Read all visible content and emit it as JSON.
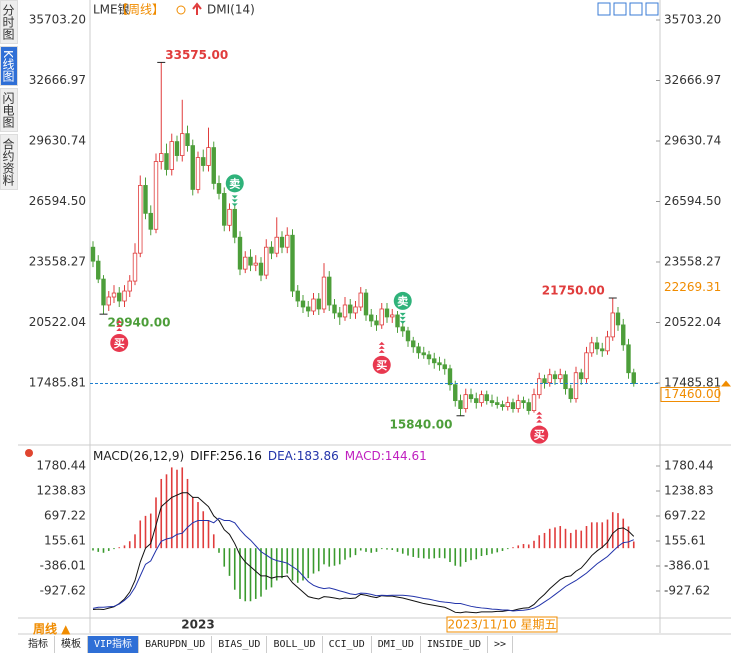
{
  "header": {
    "symbol": "LME镍",
    "period": "【周线】",
    "indicator": "DMI(14)"
  },
  "sidebar": {
    "items": [
      "分时图",
      "K线图",
      "闪电图",
      "合约资料"
    ],
    "active": 1
  },
  "bottom_tabs": {
    "items": [
      "指标",
      "模板",
      "VIP指标",
      "BARUPDN_UD",
      "BIAS_UD",
      "BOLL_UD",
      "CCI_UD",
      "DMI_UD",
      "INSIDE_UD",
      ">>"
    ],
    "active": 2
  },
  "period_button": "周线 ▲",
  "cursor_date": "2023/11/10 星期五",
  "chart_data": [
    {
      "type": "candlestick",
      "categories": [
        null,
        null,
        null,
        null,
        null,
        null,
        null,
        null,
        null,
        null,
        null,
        null,
        null,
        null,
        null,
        null,
        null,
        null,
        null,
        null,
        "2023",
        null,
        null,
        null,
        null,
        null,
        null,
        null,
        null,
        null,
        null,
        null,
        null,
        null,
        null,
        null,
        null,
        null,
        null,
        null,
        null,
        null,
        null,
        null,
        null,
        null,
        null,
        null,
        null,
        null,
        null,
        null,
        null,
        null,
        null,
        null,
        null,
        null,
        null,
        null,
        null,
        null,
        null,
        null,
        null,
        null,
        null,
        null,
        null,
        null,
        null,
        null,
        null,
        null,
        null,
        null,
        null,
        null,
        null,
        null,
        null,
        null,
        null,
        null,
        null,
        null,
        null,
        null,
        null,
        null,
        null,
        null,
        null,
        null,
        null,
        null,
        null,
        null,
        null,
        null,
        null,
        null,
        null,
        null
      ],
      "ohlc": [
        [
          24300,
          24600,
          23300,
          23600
        ],
        [
          23600,
          23900,
          22500,
          22700
        ],
        [
          22700,
          22900,
          20940,
          21400
        ],
        [
          21400,
          22100,
          21100,
          21800
        ],
        [
          21800,
          22400,
          21500,
          22000
        ],
        [
          22000,
          22300,
          21300,
          21600
        ],
        [
          21600,
          22400,
          21300,
          22100
        ],
        [
          22100,
          22900,
          21800,
          22600
        ],
        [
          22600,
          24500,
          22400,
          24000
        ],
        [
          24000,
          27900,
          23800,
          27400
        ],
        [
          27400,
          27800,
          25700,
          26000
        ],
        [
          26000,
          26400,
          24900,
          25200
        ],
        [
          25200,
          29000,
          25000,
          28600
        ],
        [
          28600,
          33575,
          28200,
          29000
        ],
        [
          29000,
          29500,
          27900,
          28200
        ],
        [
          28200,
          30000,
          27900,
          29600
        ],
        [
          29600,
          29900,
          28600,
          28900
        ],
        [
          28900,
          31700,
          28600,
          30000
        ],
        [
          30000,
          30400,
          29100,
          29400
        ],
        [
          29400,
          29700,
          26900,
          27200
        ],
        [
          27200,
          29100,
          27000,
          28800
        ],
        [
          28800,
          29200,
          28100,
          28400
        ],
        [
          28400,
          30300,
          28100,
          29300
        ],
        [
          29300,
          29600,
          27200,
          27500
        ],
        [
          27500,
          27900,
          26700,
          27000
        ],
        [
          27000,
          27300,
          25100,
          25400
        ],
        [
          25400,
          26500,
          25100,
          26200
        ],
        [
          26200,
          26400,
          24500,
          24800
        ],
        [
          24800,
          25100,
          22900,
          23200
        ],
        [
          23200,
          24100,
          23000,
          23800
        ],
        [
          23800,
          24200,
          23100,
          23400
        ],
        [
          23400,
          23900,
          23100,
          23500
        ],
        [
          23500,
          23800,
          22600,
          22900
        ],
        [
          22900,
          24700,
          22700,
          24300
        ],
        [
          24300,
          24600,
          23700,
          24000
        ],
        [
          24000,
          25800,
          23800,
          24800
        ],
        [
          24800,
          25100,
          24000,
          24300
        ],
        [
          24300,
          25300,
          24000,
          24900
        ],
        [
          24900,
          25200,
          21800,
          22100
        ],
        [
          22100,
          22400,
          21300,
          21600
        ],
        [
          21600,
          21900,
          21000,
          21300
        ],
        [
          21300,
          21600,
          20800,
          21100
        ],
        [
          21100,
          22000,
          20900,
          21700
        ],
        [
          21700,
          22000,
          20900,
          21200
        ],
        [
          21200,
          23500,
          21000,
          22800
        ],
        [
          22800,
          23100,
          21100,
          21400
        ],
        [
          21400,
          21700,
          20700,
          21000
        ],
        [
          21000,
          21300,
          20400,
          20800
        ],
        [
          20800,
          21800,
          20600,
          21400
        ],
        [
          21400,
          21700,
          20700,
          21000
        ],
        [
          21000,
          21600,
          20700,
          21300
        ],
        [
          21300,
          22300,
          21100,
          22000
        ],
        [
          22000,
          22200,
          20600,
          20900
        ],
        [
          20900,
          21200,
          20300,
          20600
        ],
        [
          20600,
          20900,
          20100,
          20400
        ],
        [
          20400,
          21500,
          20200,
          21200
        ],
        [
          21200,
          21500,
          20500,
          20800
        ],
        [
          20800,
          21200,
          20500,
          20900
        ],
        [
          20900,
          21100,
          20000,
          20300
        ],
        [
          20300,
          20500,
          19800,
          20100
        ],
        [
          20100,
          20300,
          19300,
          19600
        ],
        [
          19600,
          19800,
          19000,
          19300
        ],
        [
          19300,
          19500,
          18700,
          19000
        ],
        [
          19000,
          19300,
          18700,
          18900
        ],
        [
          18900,
          19100,
          18400,
          18700
        ],
        [
          18700,
          19000,
          18200,
          18500
        ],
        [
          18500,
          18800,
          18100,
          18400
        ],
        [
          18400,
          18700,
          17900,
          18200
        ],
        [
          18200,
          18400,
          17100,
          17400
        ],
        [
          17400,
          17600,
          16300,
          16600
        ],
        [
          16600,
          16900,
          15840,
          16200
        ],
        [
          16200,
          17200,
          16000,
          16900
        ],
        [
          16900,
          17200,
          16500,
          16700
        ],
        [
          16700,
          17000,
          16200,
          16500
        ],
        [
          16500,
          17100,
          16300,
          16900
        ],
        [
          16900,
          17100,
          16400,
          16600
        ],
        [
          16600,
          16900,
          16300,
          16500
        ],
        [
          16500,
          16800,
          16200,
          16400
        ],
        [
          16400,
          16600,
          16100,
          16300
        ],
        [
          16300,
          16800,
          16100,
          16500
        ],
        [
          16500,
          16700,
          16000,
          16200
        ],
        [
          16200,
          16900,
          16000,
          16600
        ],
        [
          16600,
          16800,
          16200,
          16500
        ],
        [
          16500,
          16700,
          15900,
          16100
        ],
        [
          16100,
          17200,
          16000,
          16900
        ],
        [
          16900,
          18000,
          16700,
          17700
        ],
        [
          17700,
          17900,
          17200,
          17500
        ],
        [
          17500,
          18200,
          17300,
          17900
        ],
        [
          17900,
          18100,
          17400,
          17700
        ],
        [
          17700,
          18200,
          17500,
          17900
        ],
        [
          17900,
          18100,
          16900,
          17200
        ],
        [
          17200,
          17400,
          16500,
          16700
        ],
        [
          16700,
          18300,
          16500,
          18000
        ],
        [
          18000,
          18200,
          17400,
          17700
        ],
        [
          17700,
          19300,
          17500,
          19000
        ],
        [
          19000,
          19800,
          18800,
          19500
        ],
        [
          19500,
          19800,
          18900,
          19200
        ],
        [
          19200,
          19500,
          18800,
          19100
        ],
        [
          19100,
          20100,
          18900,
          19800
        ],
        [
          19800,
          21750,
          19600,
          21000
        ],
        [
          21000,
          21300,
          20100,
          20400
        ],
        [
          20400,
          20700,
          19100,
          19400
        ],
        [
          19400,
          19700,
          17700,
          18000
        ],
        [
          18000,
          18200,
          17300,
          17460
        ]
      ],
      "up_color": "#e03c3c",
      "down_color": "#4d9e3a",
      "ylim": [
        14624,
        35703.2
      ],
      "yticks": [
        {
          "value": 35703.2,
          "label": "35703.20"
        },
        32666.97,
        29630.74,
        {
          "value": 26594.5,
          "label": "26594.50"
        },
        23558.27,
        20522.04,
        17485.81
      ],
      "grid": false,
      "extremes": [
        {
          "value": 33575,
          "label": "33575.00"
        },
        {
          "value": 20940,
          "label": "20940.00"
        },
        {
          "value": 15840,
          "label": "15840.00"
        },
        {
          "value": 21750,
          "label": "21750.00"
        }
      ],
      "signals": [
        {
          "label": "买",
          "index": 5
        },
        {
          "label": "卖",
          "index": 27
        },
        {
          "label": "买",
          "index": 55
        },
        {
          "label": "卖",
          "index": 59
        },
        {
          "label": "买",
          "index": 85
        }
      ],
      "last_price": {
        "value": 17460,
        "label": "17460.00",
        "color": "#1e7fd0"
      },
      "cursor_price": {
        "value": 22269.31,
        "label": "22269.31"
      }
    },
    {
      "type": "macd",
      "title": "MACD(26,12,9)",
      "ylim": [
        -1448,
        2019
      ],
      "yticks": [
        1780.44,
        1238.83,
        697.22,
        155.61,
        -386.01,
        -927.62
      ],
      "series": [
        {
          "name": "DIFF:",
          "color": "#111111",
          "values": [
            -1330,
            -1320,
            -1330,
            -1300,
            -1270,
            -1200,
            -1100,
            -950,
            -700,
            -300,
            0,
            100,
            500,
            900,
            1000,
            1100,
            1150,
            1200,
            1200,
            1100,
            1100,
            1000,
            900,
            700,
            600,
            400,
            300,
            100,
            -150,
            -300,
            -400,
            -500,
            -600,
            -600,
            -650,
            -620,
            -620,
            -600,
            -750,
            -850,
            -950,
            -1050,
            -1080,
            -1100,
            -1050,
            -1060,
            -1080,
            -1100,
            -1080,
            -1090,
            -1080,
            -1000,
            -1020,
            -1050,
            -1070,
            -1030,
            -1040,
            -1040,
            -1060,
            -1080,
            -1110,
            -1140,
            -1170,
            -1200,
            -1220,
            -1240,
            -1260,
            -1280,
            -1330,
            -1390,
            -1400,
            -1380,
            -1390,
            -1400,
            -1380,
            -1380,
            -1380,
            -1370,
            -1370,
            -1350,
            -1350,
            -1320,
            -1300,
            -1290,
            -1220,
            -1100,
            -1000,
            -880,
            -780,
            -680,
            -620,
            -600,
            -500,
            -430,
            -300,
            -160,
            -60,
            20,
            130,
            320,
            420,
            440,
            370,
            256.16
          ]
        },
        {
          "name": "DEA:",
          "color": "#2233aa",
          "values": [
            -1305,
            -1280,
            -1280,
            -1270,
            -1260,
            -1210,
            -1130,
            -1025,
            -850,
            -600,
            -350,
            -275,
            -50,
            150,
            200,
            225,
            300,
            325,
            450,
            550,
            600,
            600,
            600,
            550,
            650,
            600,
            600,
            550,
            400,
            275,
            175,
            50,
            -75,
            -150,
            -225,
            -270,
            -295,
            -325,
            -400,
            -475,
            -600,
            -725,
            -805,
            -850,
            -875,
            -860,
            -890,
            -925,
            -955,
            -990,
            -1005,
            -975,
            -980,
            -1000,
            -1030,
            -1020,
            -1025,
            -1020,
            -1020,
            -1020,
            -1030,
            -1045,
            -1065,
            -1090,
            -1105,
            -1130,
            -1155,
            -1170,
            -1180,
            -1200,
            -1200,
            -1230,
            -1260,
            -1280,
            -1295,
            -1305,
            -1320,
            -1325,
            -1340,
            -1340,
            -1360,
            -1350,
            -1345,
            -1330,
            -1300,
            -1240,
            -1165,
            -1090,
            -1005,
            -920,
            -830,
            -765,
            -700,
            -620,
            -540,
            -440,
            -340,
            -260,
            -180,
            -70,
            40,
            120,
            135,
            183.86
          ]
        },
        {
          "name": "MACD:",
          "color": "#c020c0",
          "up_color": "#e03c3c",
          "down_color": "#3a9a2e",
          "values": [
            -50,
            -80,
            -100,
            -60,
            -20,
            20,
            60,
            150,
            300,
            600,
            700,
            750,
            1100,
            1500,
            1600,
            1750,
            1700,
            1750,
            1500,
            1100,
            1000,
            800,
            600,
            300,
            -100,
            -400,
            -600,
            -900,
            -1100,
            -1150,
            -1150,
            -1100,
            -1050,
            -900,
            -850,
            -700,
            -650,
            -550,
            -700,
            -750,
            -700,
            -650,
            -550,
            -500,
            -350,
            -400,
            -380,
            -350,
            -250,
            -200,
            -150,
            -50,
            -80,
            -100,
            -80,
            -20,
            -30,
            -40,
            -80,
            -120,
            -160,
            -190,
            -210,
            -220,
            -230,
            -220,
            -210,
            -220,
            -300,
            -380,
            -400,
            -300,
            -260,
            -240,
            -170,
            -150,
            -120,
            -90,
            -60,
            -20,
            20,
            60,
            90,
            80,
            160,
            280,
            330,
            420,
            450,
            480,
            420,
            330,
            400,
            380,
            480,
            560,
            560,
            560,
            620,
            780,
            760,
            640,
            470,
            144.61
          ]
        }
      ]
    }
  ]
}
